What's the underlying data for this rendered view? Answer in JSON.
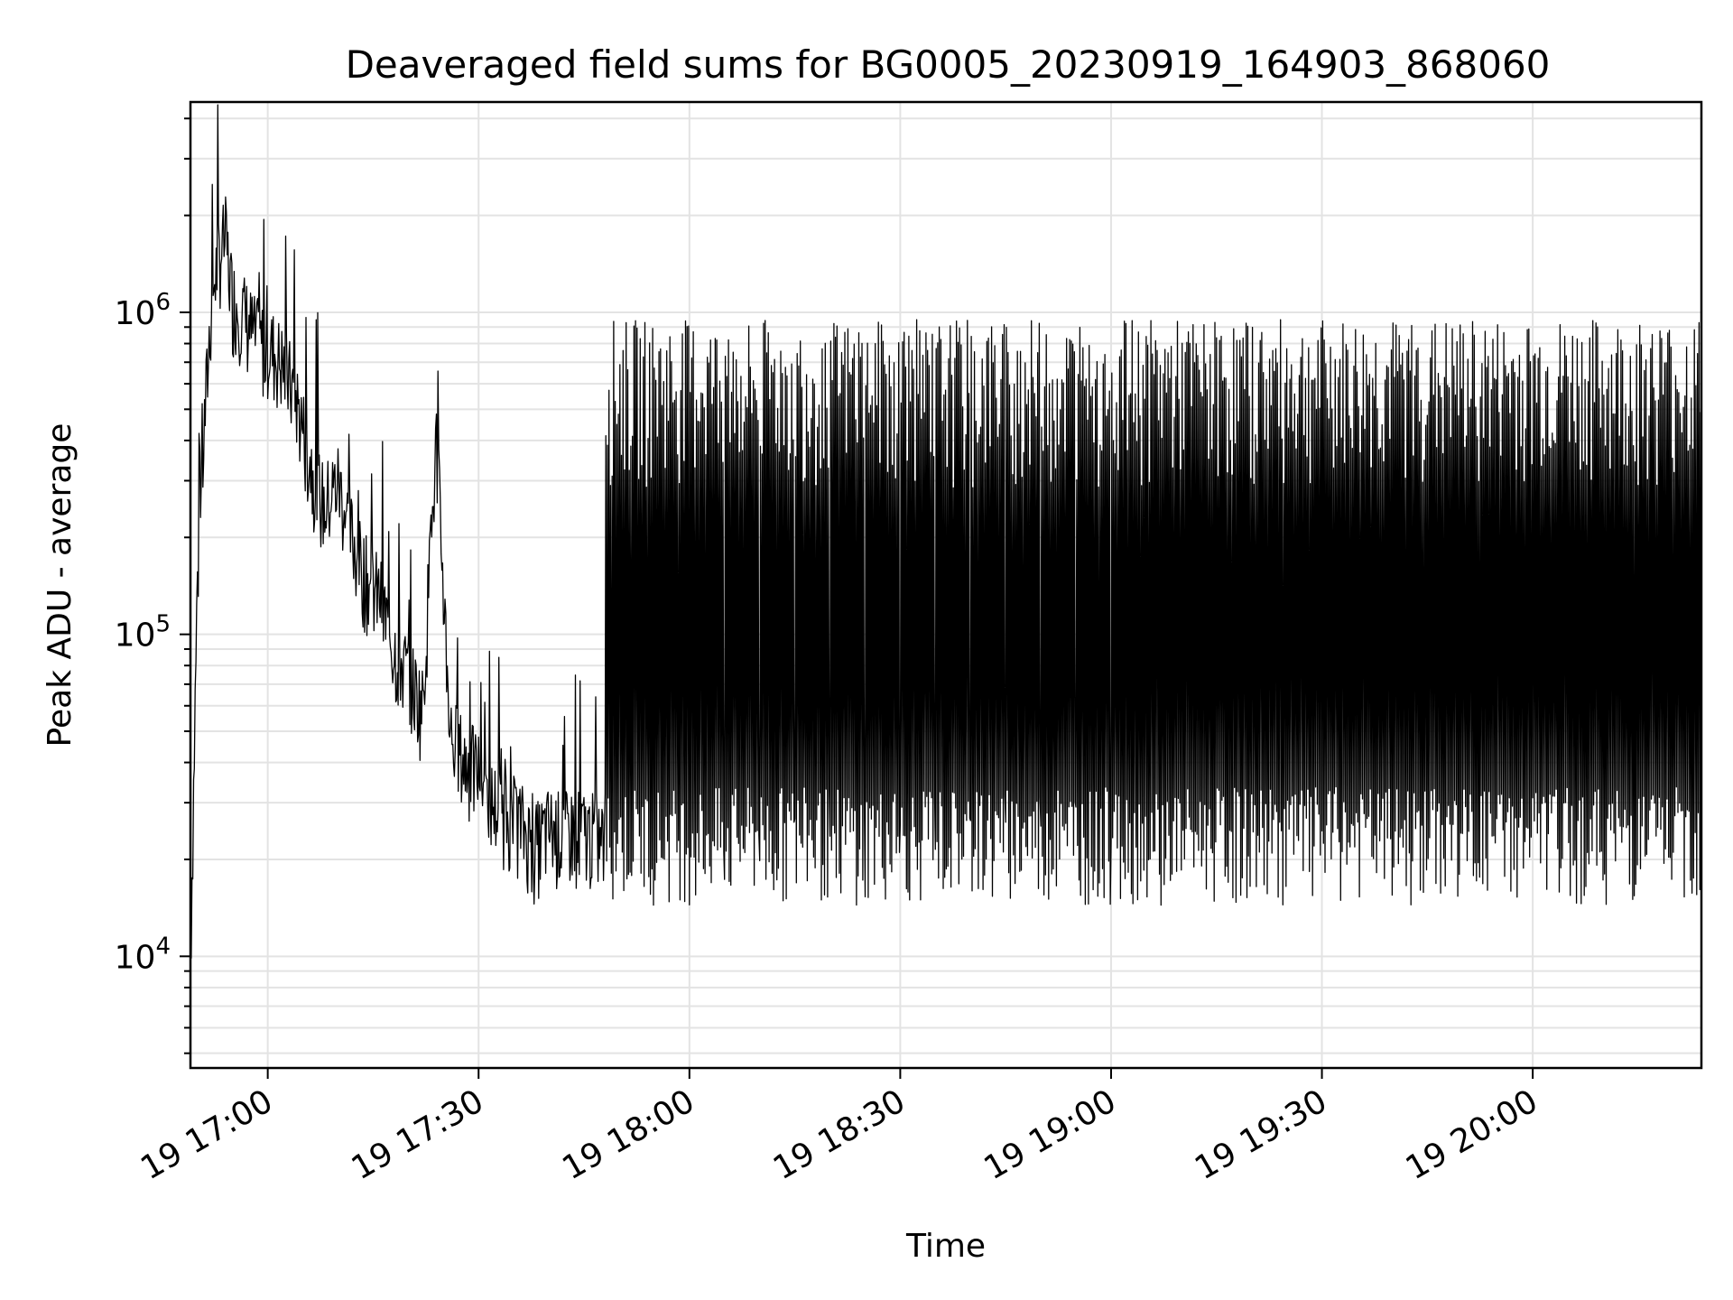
{
  "chart_data": {
    "type": "line",
    "title": "Deaveraged field sums for BG0005_20230919_164903_868060",
    "xlabel": "Time",
    "ylabel": "Peak ADU - average",
    "yscale": "log",
    "ylim": [
      4500,
      4500000
    ],
    "xlim": [
      "2023-09-19 16:49",
      "2023-09-19 20:24"
    ],
    "grid": true,
    "x_ticks": [
      {
        "value": "2023-09-19 17:00",
        "label": "19 17:00"
      },
      {
        "value": "2023-09-19 17:30",
        "label": "19 17:30"
      },
      {
        "value": "2023-09-19 18:00",
        "label": "19 18:00"
      },
      {
        "value": "2023-09-19 18:30",
        "label": "19 18:30"
      },
      {
        "value": "2023-09-19 19:00",
        "label": "19 19:00"
      },
      {
        "value": "2023-09-19 19:30",
        "label": "19 19:30"
      },
      {
        "value": "2023-09-19 20:00",
        "label": "19 20:00"
      }
    ],
    "y_ticks": [
      {
        "value": 10000,
        "base": "10",
        "exp": "4"
      },
      {
        "value": 100000,
        "base": "10",
        "exp": "5"
      },
      {
        "value": 1000000,
        "base": "10",
        "exp": "6"
      }
    ],
    "series": [
      {
        "color": "#000000",
        "x": [
          "2023-09-19 16:49",
          "2023-09-19 16:50",
          "2023-09-19 16:51",
          "2023-09-19 16:52",
          "2023-09-19 16:53",
          "2023-09-19 16:54",
          "2023-09-19 16:55",
          "2023-09-19 16:56",
          "2023-09-19 16:57",
          "2023-09-19 16:58",
          "2023-09-19 16:59",
          "2023-09-19 17:00",
          "2023-09-19 17:02",
          "2023-09-19 17:04",
          "2023-09-19 17:06",
          "2023-09-19 17:08",
          "2023-09-19 17:10",
          "2023-09-19 17:12",
          "2023-09-19 17:14",
          "2023-09-19 17:16",
          "2023-09-19 17:18",
          "2023-09-19 17:20",
          "2023-09-19 17:22",
          "2023-09-19 17:24",
          "2023-09-19 17:26",
          "2023-09-19 17:28",
          "2023-09-19 17:30",
          "2023-09-19 17:32",
          "2023-09-19 17:34",
          "2023-09-19 17:36",
          "2023-09-19 17:38",
          "2023-09-19 17:40",
          "2023-09-19 17:42",
          "2023-09-19 17:44",
          "2023-09-19 17:46",
          "2023-09-19 17:48",
          "2023-09-19 17:50",
          "2023-09-19 17:52",
          "2023-09-19 17:54",
          "2023-09-19 17:56",
          "2023-09-19 17:58",
          "2023-09-19 18:00",
          "2023-09-19 18:05",
          "2023-09-19 18:10",
          "2023-09-19 18:15",
          "2023-09-19 18:20",
          "2023-09-19 18:25",
          "2023-09-19 18:30",
          "2023-09-19 18:35",
          "2023-09-19 18:40",
          "2023-09-19 18:45",
          "2023-09-19 18:50",
          "2023-09-19 18:55",
          "2023-09-19 19:00",
          "2023-09-19 19:10",
          "2023-09-19 19:20",
          "2023-09-19 19:30",
          "2023-09-19 19:40",
          "2023-09-19 19:50",
          "2023-09-19 20:00",
          "2023-09-19 20:10",
          "2023-09-19 20:20",
          "2023-09-19 20:24"
        ],
        "y": [
          10000,
          150000,
          450000,
          1100000,
          1500000,
          1700000,
          1100000,
          1050000,
          950000,
          850000,
          800000,
          800000,
          700000,
          550000,
          350000,
          250000,
          300000,
          200000,
          150000,
          130000,
          90000,
          75000,
          60000,
          400000,
          50000,
          40000,
          38000,
          30000,
          28000,
          26000,
          22000,
          25000,
          24000,
          25000,
          24000,
          23000,
          400000,
          20000,
          500000,
          22000,
          500000,
          24000,
          500000,
          26000,
          600000,
          25000,
          500000,
          28000,
          600000,
          22000,
          500000,
          25000,
          700000,
          600000,
          500000,
          450000,
          550000,
          600000,
          500000,
          450000,
          300000,
          150000,
          300000
        ],
        "y_range_envelope": {
          "low": 12000,
          "high": 950000
        }
      }
    ]
  }
}
